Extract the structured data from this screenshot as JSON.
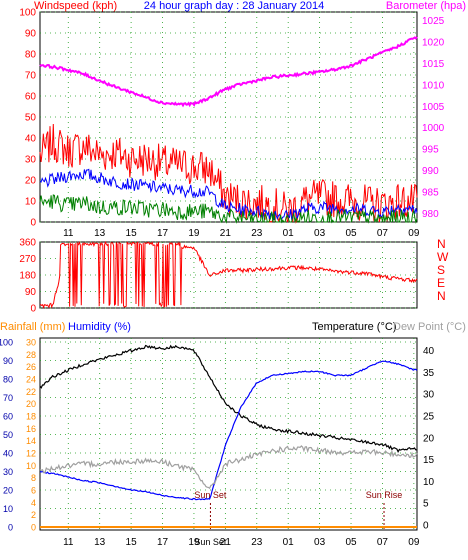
{
  "chart_data": [
    {
      "type": "line",
      "title": "24 hour graph day : 28 January 2014",
      "left_axis_label": "Windspeed (kph)",
      "right_axis_label": "Barometer (hpa)",
      "x_tick_labels": [
        "11",
        "13",
        "15",
        "17",
        "19",
        "21",
        "23",
        "01",
        "03",
        "05",
        "07",
        "09"
      ],
      "left_ticks": [
        "0",
        "10",
        "20",
        "30",
        "40",
        "50",
        "60",
        "70",
        "80",
        "90",
        "100"
      ],
      "right_ticks": [
        "980",
        "985",
        "990",
        "995",
        "1000",
        "1005",
        "1010",
        "1015",
        "1020",
        "1025"
      ],
      "ylim_left": [
        0,
        100
      ],
      "ylim_right": [
        978,
        1027
      ],
      "grid": true,
      "hours": [
        9,
        10,
        11,
        12,
        13,
        14,
        15,
        16,
        17,
        18,
        19,
        20,
        21,
        22,
        23,
        24,
        25,
        26,
        27,
        28,
        29,
        30,
        31,
        32,
        33
      ],
      "series": [
        {
          "name": "Windspeed (kph)",
          "axis": "left",
          "color": "#ff0000",
          "noise": 9,
          "values": [
            30,
            38,
            34,
            36,
            32,
            33,
            30,
            30,
            28,
            27,
            26,
            25,
            12,
            10,
            9,
            8,
            5,
            10,
            12,
            11,
            10,
            9,
            8,
            10,
            9
          ]
        },
        {
          "name": "",
          "axis": "left",
          "color": "#0000ff",
          "noise": 3,
          "values": [
            18,
            20,
            22,
            23,
            21,
            19,
            18,
            17,
            16,
            15,
            15,
            14,
            7,
            6,
            5,
            4,
            3,
            6,
            7,
            7,
            6,
            6,
            5,
            7,
            6
          ]
        },
        {
          "name": "",
          "axis": "left",
          "color": "#008000",
          "noise": 4,
          "values": [
            9,
            10,
            8,
            9,
            7,
            7,
            7,
            6,
            6,
            5,
            5,
            5,
            2,
            2,
            1,
            1,
            0,
            2,
            2,
            2,
            2,
            2,
            1,
            2,
            2
          ]
        },
        {
          "name": "Barometer (hpa)",
          "axis": "right",
          "color": "#ff00ff",
          "noise": 0.3,
          "values": [
            1014.8,
            1014.2,
            1013.5,
            1012.5,
            1011,
            1009.5,
            1008.3,
            1007,
            1005.8,
            1005.5,
            1005.5,
            1007,
            1009,
            1010.2,
            1011,
            1011.8,
            1012.2,
            1012.6,
            1013,
            1013.6,
            1014.5,
            1016,
            1017.5,
            1019,
            1021
          ]
        }
      ]
    },
    {
      "type": "line",
      "title": "",
      "series_name": "Wind direction",
      "left_ticks": [
        "0",
        "90",
        "180",
        "270",
        "360"
      ],
      "right_ticks": [
        "N",
        "W",
        "S",
        "E",
        "N"
      ],
      "ylim": [
        0,
        360
      ],
      "grid": true,
      "color": "#ff0000",
      "hours": [
        9,
        10,
        11,
        12,
        13,
        14,
        15,
        16,
        17,
        18,
        19,
        20,
        21,
        22,
        23,
        24,
        25,
        26,
        27,
        28,
        29,
        30,
        31,
        32,
        33
      ],
      "values": [
        10,
        15,
        350,
        355,
        350,
        355,
        350,
        340,
        345,
        335,
        330,
        175,
        205,
        205,
        210,
        215,
        220,
        220,
        210,
        200,
        195,
        190,
        170,
        160,
        150
      ]
    },
    {
      "type": "line",
      "rainfall_label": "Rainfall (mm)",
      "humidity_label": "Humidity (%)",
      "temperature_label": "Temperature (°C)",
      "dewpoint_label": "Dew Point (°C)",
      "x_tick_labels": [
        "11",
        "13",
        "15",
        "17",
        "19",
        "21",
        "23",
        "01",
        "03",
        "05",
        "07",
        "09"
      ],
      "sunset_label": "Sun Set",
      "sunrise_label": "Sun Rise",
      "sunset_hour": 20.05,
      "sunrise_hour": 31.1,
      "extra_tick_label": "Sun Set",
      "humidity_ticks": [
        "0",
        "10",
        "20",
        "30",
        "40",
        "50",
        "60",
        "70",
        "80",
        "90",
        "100"
      ],
      "rainfall_ticks": [
        "0",
        "2",
        "4",
        "6",
        "8",
        "10",
        "12",
        "14",
        "16",
        "18",
        "20",
        "22",
        "24",
        "26",
        "28",
        "30"
      ],
      "temp_ticks": [
        "0",
        "5",
        "10",
        "15",
        "20",
        "25",
        "30",
        "35",
        "40"
      ],
      "ylim_humidity": [
        0,
        100
      ],
      "ylim_temp": [
        -0.5,
        42
      ],
      "grid": true,
      "hours": [
        9,
        10,
        11,
        12,
        13,
        14,
        15,
        16,
        17,
        18,
        19,
        20,
        21,
        22,
        23,
        24,
        25,
        26,
        27,
        28,
        29,
        30,
        31,
        32,
        33
      ],
      "series": [
        {
          "name": "Temperature (°C)",
          "axis": "temp",
          "color": "#000000",
          "values": [
            31,
            34,
            35.5,
            37,
            38,
            39,
            40,
            41,
            40.5,
            41,
            40,
            34,
            28,
            25,
            23,
            22,
            21.5,
            21,
            20.5,
            20,
            19.5,
            19,
            18.5,
            17,
            17.5
          ]
        },
        {
          "name": "Humidity (%)",
          "axis": "humidity",
          "color": "#0000ff",
          "values": [
            30,
            29,
            27,
            25,
            24,
            22,
            20,
            19,
            17,
            16,
            15,
            15,
            44,
            65,
            78,
            82,
            83,
            84,
            84,
            82,
            82,
            86,
            90,
            88,
            85
          ]
        },
        {
          "name": "Dew Point (°C)",
          "axis": "temp",
          "color": "#a0a0a0",
          "values": [
            12,
            13,
            13.5,
            14,
            14,
            14.5,
            14.5,
            14.8,
            14.5,
            13.5,
            12.5,
            8,
            14,
            15,
            16,
            17,
            17.5,
            17.5,
            17,
            16.8,
            16.5,
            16.8,
            16.5,
            16.2,
            16
          ]
        },
        {
          "name": "Rainfall (mm)",
          "axis": "rainfall",
          "color": "#ff8c00",
          "values": [
            0,
            0,
            0,
            0,
            0,
            0,
            0,
            0,
            0,
            0,
            0,
            0,
            0,
            0,
            0,
            0,
            0,
            0,
            0,
            0,
            0,
            0,
            0,
            0,
            0
          ]
        }
      ]
    }
  ],
  "colors": {
    "wind_label": "#ff0000",
    "title": "#0000ff",
    "barometer_label": "#ff00ff",
    "rainfall_label": "#ff8c00",
    "humidity_label": "#0000ff",
    "axis_blue_tick": "#0000aa",
    "baro_tick": "#ff00ff",
    "direction_letter": "#ff0000",
    "dewpoint_label": "#a0a0a0",
    "temp_tick": "#000000",
    "sun_line": "#8b0000"
  }
}
